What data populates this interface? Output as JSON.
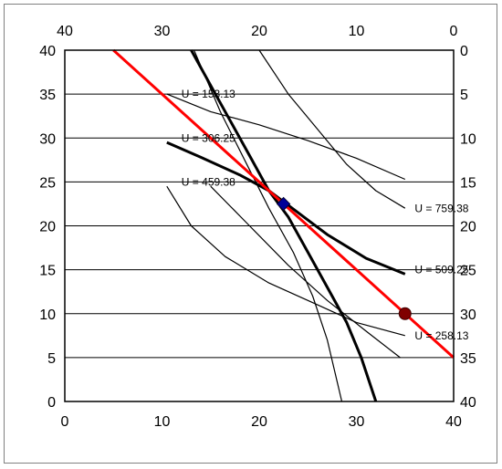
{
  "chart_data": {
    "type": "line",
    "title": "",
    "xlabel": "",
    "ylabel": "",
    "xlim": [
      0,
      40
    ],
    "ylim": [
      0,
      40
    ],
    "top_xlim": [
      40,
      0
    ],
    "right_ylim": [
      0,
      40
    ],
    "bottom_ticks": [
      "0",
      "10",
      "20",
      "30",
      "40"
    ],
    "left_ticks": [
      "0",
      "5",
      "10",
      "15",
      "20",
      "25",
      "30",
      "35",
      "40"
    ],
    "top_ticks": [
      "40",
      "30",
      "20",
      "10",
      "0"
    ],
    "right_ticks": [
      "0",
      "5",
      "10",
      "15",
      "20",
      "25",
      "30",
      "35",
      "40"
    ],
    "grid": "horizontal",
    "colors": {
      "budget_line": "#ff0000",
      "optimum_point": "#000099",
      "endowment_point": "#800000"
    },
    "series": [
      {
        "values": [
          [
            5,
            40
          ],
          [
            40,
            5
          ]
        ]
      },
      {
        "values": [
          [
            13,
            40
          ],
          [
            16,
            34
          ],
          [
            19,
            28
          ],
          [
            21,
            24
          ],
          [
            23,
            21
          ],
          [
            25,
            17
          ],
          [
            27,
            13
          ],
          [
            29,
            9
          ],
          [
            30.5,
            5
          ],
          [
            32,
            0
          ]
        ]
      },
      {
        "values": [
          [
            10.5,
            29.5
          ],
          [
            14,
            27.8
          ],
          [
            18,
            25.8
          ],
          [
            21,
            24
          ],
          [
            24,
            21.5
          ],
          [
            27,
            19
          ],
          [
            31,
            16.3
          ],
          [
            35,
            14.5
          ]
        ]
      },
      {
        "values": [
          [
            20,
            40
          ],
          [
            23,
            35
          ],
          [
            26,
            31
          ],
          [
            29,
            27
          ],
          [
            32,
            24
          ],
          [
            35,
            22
          ]
        ]
      },
      {
        "values": [
          [
            10.5,
            35
          ],
          [
            15,
            33
          ],
          [
            20,
            31.5
          ],
          [
            25,
            29.7
          ],
          [
            30,
            27.7
          ],
          [
            35,
            25.3
          ]
        ]
      },
      {
        "values": [
          [
            10.5,
            24.5
          ],
          [
            13,
            20
          ],
          [
            16.5,
            16.5
          ],
          [
            21,
            13.5
          ],
          [
            26,
            11
          ],
          [
            30,
            9
          ],
          [
            35,
            7.5
          ]
        ]
      },
      {
        "values": [
          [
            13.3,
            40
          ],
          [
            16,
            33
          ],
          [
            18.5,
            27.5
          ],
          [
            21,
            22
          ],
          [
            23.5,
            17
          ],
          [
            25.5,
            12
          ],
          [
            27,
            7
          ],
          [
            28.5,
            0
          ]
        ]
      },
      {
        "values": [
          [
            15,
            24.5
          ],
          [
            19,
            20
          ],
          [
            23,
            15.5
          ],
          [
            27,
            11.5
          ],
          [
            31,
            8
          ],
          [
            34.5,
            5
          ]
        ]
      }
    ],
    "points": [
      {
        "x": 22.5,
        "y": 22.5,
        "marker": "diamond"
      },
      {
        "x": 35,
        "y": 10,
        "marker": "circle"
      }
    ],
    "annotations": [
      {
        "text": "U = 153.13",
        "x": 12,
        "y": 35
      },
      {
        "text": "U = 306.25",
        "x": 12,
        "y": 30
      },
      {
        "text": "U = 459.38",
        "x": 12,
        "y": 25
      },
      {
        "text": "U = 759.38",
        "x": 36,
        "y": 22
      },
      {
        "text": "U = 509.25",
        "x": 36,
        "y": 15
      },
      {
        "text": "U = 258.13",
        "x": 36,
        "y": 7.5
      }
    ]
  }
}
